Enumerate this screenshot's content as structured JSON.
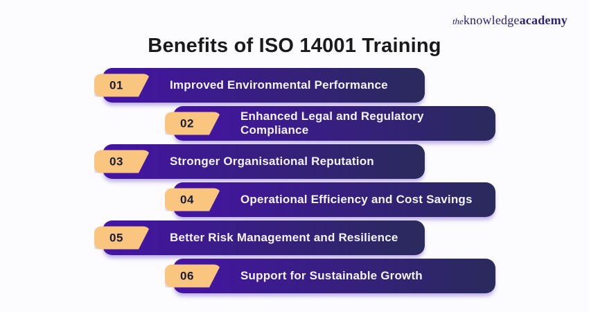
{
  "logo": {
    "prefix": "the",
    "mid": "knowledge",
    "suffix": "academy"
  },
  "title": "Benefits of ISO 14001 Training",
  "benefits": [
    {
      "number": "01",
      "label": "Improved Environmental Performance"
    },
    {
      "number": "02",
      "label": "Enhanced Legal and Regulatory Compliance"
    },
    {
      "number": "03",
      "label": "Stronger Organisational Reputation"
    },
    {
      "number": "04",
      "label": "Operational Efficiency and Cost Savings"
    },
    {
      "number": "05",
      "label": "Better Risk Management and Resilience"
    },
    {
      "number": "06",
      "label": "Support for Sustainable Growth"
    }
  ],
  "colors": {
    "background": "#FCFBFD",
    "bar_gradient_start": "#4414A4",
    "bar_gradient_end": "#2A2A5C",
    "bar_text_color": "#F4F2FA",
    "badge_fill": "#FAC57F",
    "badge_number_color": "#1A1B34",
    "title_color": "#1A1A1A",
    "logo_color": "#2D2379"
  }
}
